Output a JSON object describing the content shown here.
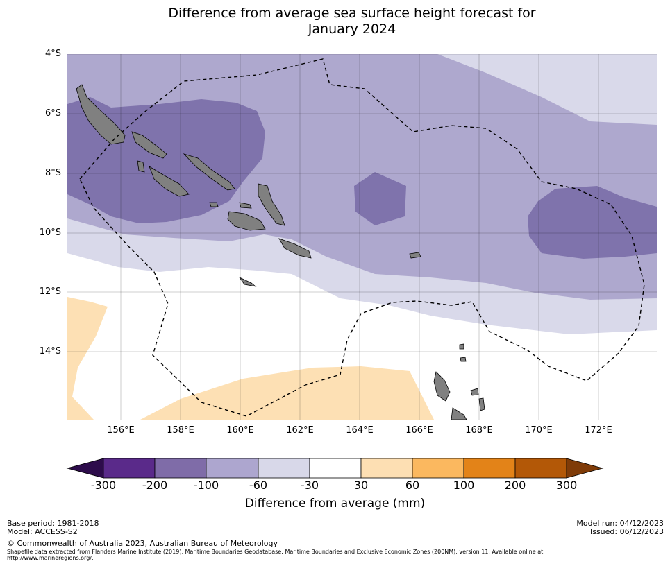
{
  "title_line1": "Difference from average sea surface height forecast for",
  "title_line2": "January 2024",
  "y_ticks": [
    "4°S",
    "6°S",
    "8°S",
    "10°S",
    "12°S",
    "14°S"
  ],
  "x_ticks": [
    "156°E",
    "158°E",
    "160°E",
    "162°E",
    "164°E",
    "166°E",
    "168°E",
    "170°E",
    "172°E"
  ],
  "colorbar": {
    "title": "Difference from average (mm)",
    "ticks": [
      "-300",
      "-200",
      "-100",
      "-60",
      "-30",
      "30",
      "60",
      "100",
      "200",
      "300"
    ],
    "colors": [
      "#2d0c4b",
      "#5a2a8a",
      "#7f6ca8",
      "#ada6cf",
      "#d8d8e9",
      "#ffffff",
      "#fddfb3",
      "#fbb85f",
      "#e38318",
      "#b35807",
      "#7f3b08"
    ]
  },
  "map_colors": {
    "land": "#808080",
    "neg_200_100": "#7f73ac",
    "neg_100_60": "#aea8ce",
    "neg_60_30": "#d9d9ea",
    "pos_30_60": "#fde0b4"
  },
  "footer": {
    "base_period": "Base period: 1981-2018",
    "model": "Model: ACCESS-S2",
    "model_run": "Model run: 04/12/2023",
    "issued": "Issued: 06/12/2023",
    "copyright": "© Commonwealth of Australia 2023, Australian Bureau of Meteorology",
    "shapefile_line1": "Shapefile data extracted from Flanders Marine Institute (2019), Maritime Boundaries Geodatabase: Maritime Boundaries and Exclusive Economic Zones (200NM), version 11. Available online at",
    "shapefile_line2": "http://www.marineregions.org/."
  }
}
